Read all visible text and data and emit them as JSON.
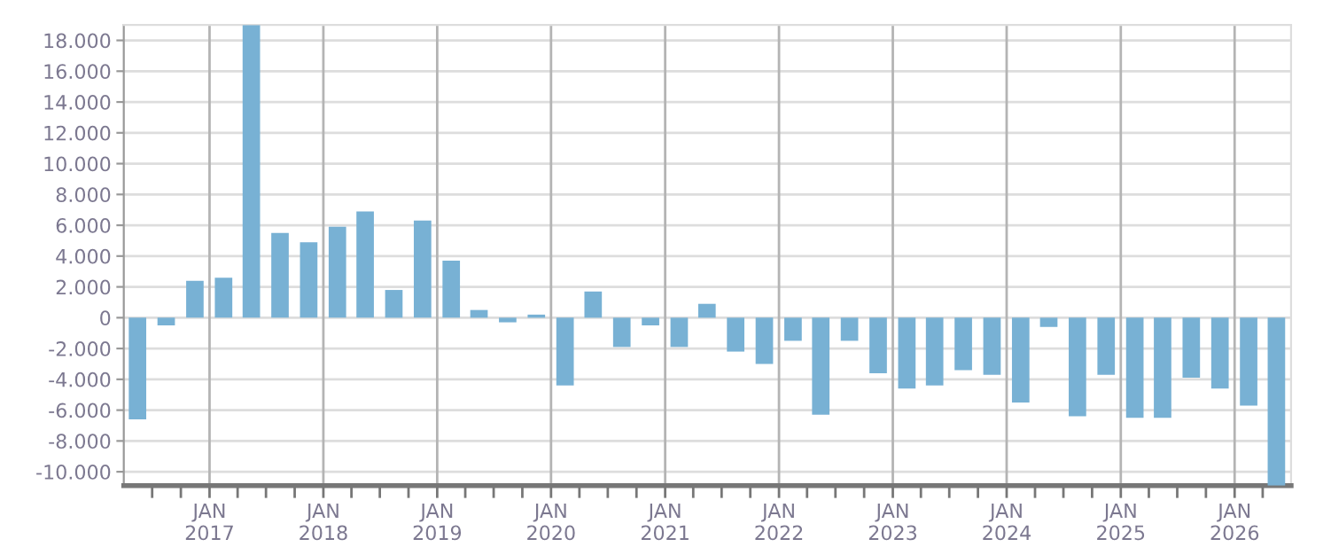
{
  "chart_data": {
    "type": "bar",
    "color": "#78b1d4",
    "x": [
      "2016-05-15",
      "2016-08-15",
      "2016-11-15",
      "2017-02-15",
      "2017-05-15",
      "2017-08-15",
      "2017-11-15",
      "2018-02-15",
      "2018-05-15",
      "2018-08-15",
      "2018-11-15",
      "2019-02-15",
      "2019-05-15",
      "2019-08-15",
      "2019-11-15",
      "2020-02-15",
      "2020-05-15",
      "2020-08-15",
      "2020-11-15",
      "2021-02-15",
      "2021-05-15",
      "2021-08-15",
      "2021-11-15",
      "2022-02-15",
      "2022-05-15",
      "2022-08-15",
      "2022-11-15",
      "2023-02-15",
      "2023-05-15",
      "2023-08-15",
      "2023-11-15",
      "2024-02-15",
      "2024-05-15",
      "2024-08-15",
      "2024-11-15",
      "2025-02-15",
      "2025-05-15",
      "2025-08-15",
      "2025-11-15",
      "2026-02-15",
      "2026-05-15"
    ],
    "values": [
      -6600,
      -500,
      2400,
      2600,
      19000,
      5500,
      4900,
      5900,
      6900,
      1800,
      6300,
      3700,
      500,
      -300,
      200,
      -4400,
      1700,
      -1900,
      -500,
      -1900,
      900,
      -2200,
      -3000,
      -1500,
      -6300,
      -1500,
      -3600,
      -4600,
      -4400,
      -3400,
      -3700,
      -5500,
      -600,
      -6400,
      -3700,
      -6500,
      -6500,
      -3900,
      -4600,
      -5700,
      -10900
    ],
    "xlim": [
      "2016-04-01",
      "2026-07-01"
    ],
    "xticks": [
      {
        "value": "2016-07-01",
        "label": null
      },
      {
        "value": "2016-10-01",
        "label": null
      },
      {
        "value": "2017-01-01",
        "label": "JAN\n2017"
      },
      {
        "value": "2017-04-01",
        "label": null
      },
      {
        "value": "2017-07-01",
        "label": null
      },
      {
        "value": "2017-10-01",
        "label": null
      },
      {
        "value": "2018-01-01",
        "label": "JAN\n2018"
      },
      {
        "value": "2018-04-01",
        "label": null
      },
      {
        "value": "2018-07-01",
        "label": null
      },
      {
        "value": "2018-10-01",
        "label": null
      },
      {
        "value": "2019-01-01",
        "label": "JAN\n2019"
      },
      {
        "value": "2019-04-01",
        "label": null
      },
      {
        "value": "2019-07-01",
        "label": null
      },
      {
        "value": "2019-10-01",
        "label": null
      },
      {
        "value": "2020-01-01",
        "label": "JAN\n2020"
      },
      {
        "value": "2020-04-01",
        "label": null
      },
      {
        "value": "2020-07-01",
        "label": null
      },
      {
        "value": "2020-10-01",
        "label": null
      },
      {
        "value": "2021-01-01",
        "label": "JAN\n2021"
      },
      {
        "value": "2021-04-01",
        "label": null
      },
      {
        "value": "2021-07-01",
        "label": null
      },
      {
        "value": "2021-10-01",
        "label": null
      },
      {
        "value": "2022-01-01",
        "label": "JAN\n2022"
      },
      {
        "value": "2022-04-01",
        "label": null
      },
      {
        "value": "2022-07-01",
        "label": null
      },
      {
        "value": "2022-10-01",
        "label": null
      },
      {
        "value": "2023-01-01",
        "label": "JAN\n2023"
      },
      {
        "value": "2023-04-01",
        "label": null
      },
      {
        "value": "2023-07-01",
        "label": null
      },
      {
        "value": "2023-10-01",
        "label": null
      },
      {
        "value": "2024-01-01",
        "label": "JAN\n2024"
      },
      {
        "value": "2024-04-01",
        "label": null
      },
      {
        "value": "2024-07-01",
        "label": null
      },
      {
        "value": "2024-10-01",
        "label": null
      },
      {
        "value": "2025-01-01",
        "label": "JAN\n2025"
      },
      {
        "value": "2025-04-01",
        "label": null
      },
      {
        "value": "2025-07-01",
        "label": null
      },
      {
        "value": "2025-10-01",
        "label": null
      },
      {
        "value": "2026-01-01",
        "label": "JAN\n2026"
      },
      {
        "value": "2026-04-01",
        "label": null
      }
    ],
    "ylim": [
      -10900,
      19000
    ],
    "yticks": [
      {
        "value": -10000,
        "label": "-10.000"
      },
      {
        "value": -8000,
        "label": "-8.000"
      },
      {
        "value": -6000,
        "label": "-6.000"
      },
      {
        "value": -4000,
        "label": "-4.000"
      },
      {
        "value": -2000,
        "label": "-2.000"
      },
      0,
      {
        "value": 2000,
        "label": "2.000"
      },
      {
        "value": 4000,
        "label": "4.000"
      },
      {
        "value": 6000,
        "label": "6.000"
      },
      {
        "value": 8000,
        "label": "8.000"
      },
      {
        "value": 10000,
        "label": "10.000"
      },
      {
        "value": 12000,
        "label": "12.000"
      },
      {
        "value": 14000,
        "label": "14.000"
      },
      {
        "value": 16000,
        "label": "16.000"
      },
      {
        "value": 18000,
        "label": "18.000"
      }
    ],
    "grid": true
  }
}
